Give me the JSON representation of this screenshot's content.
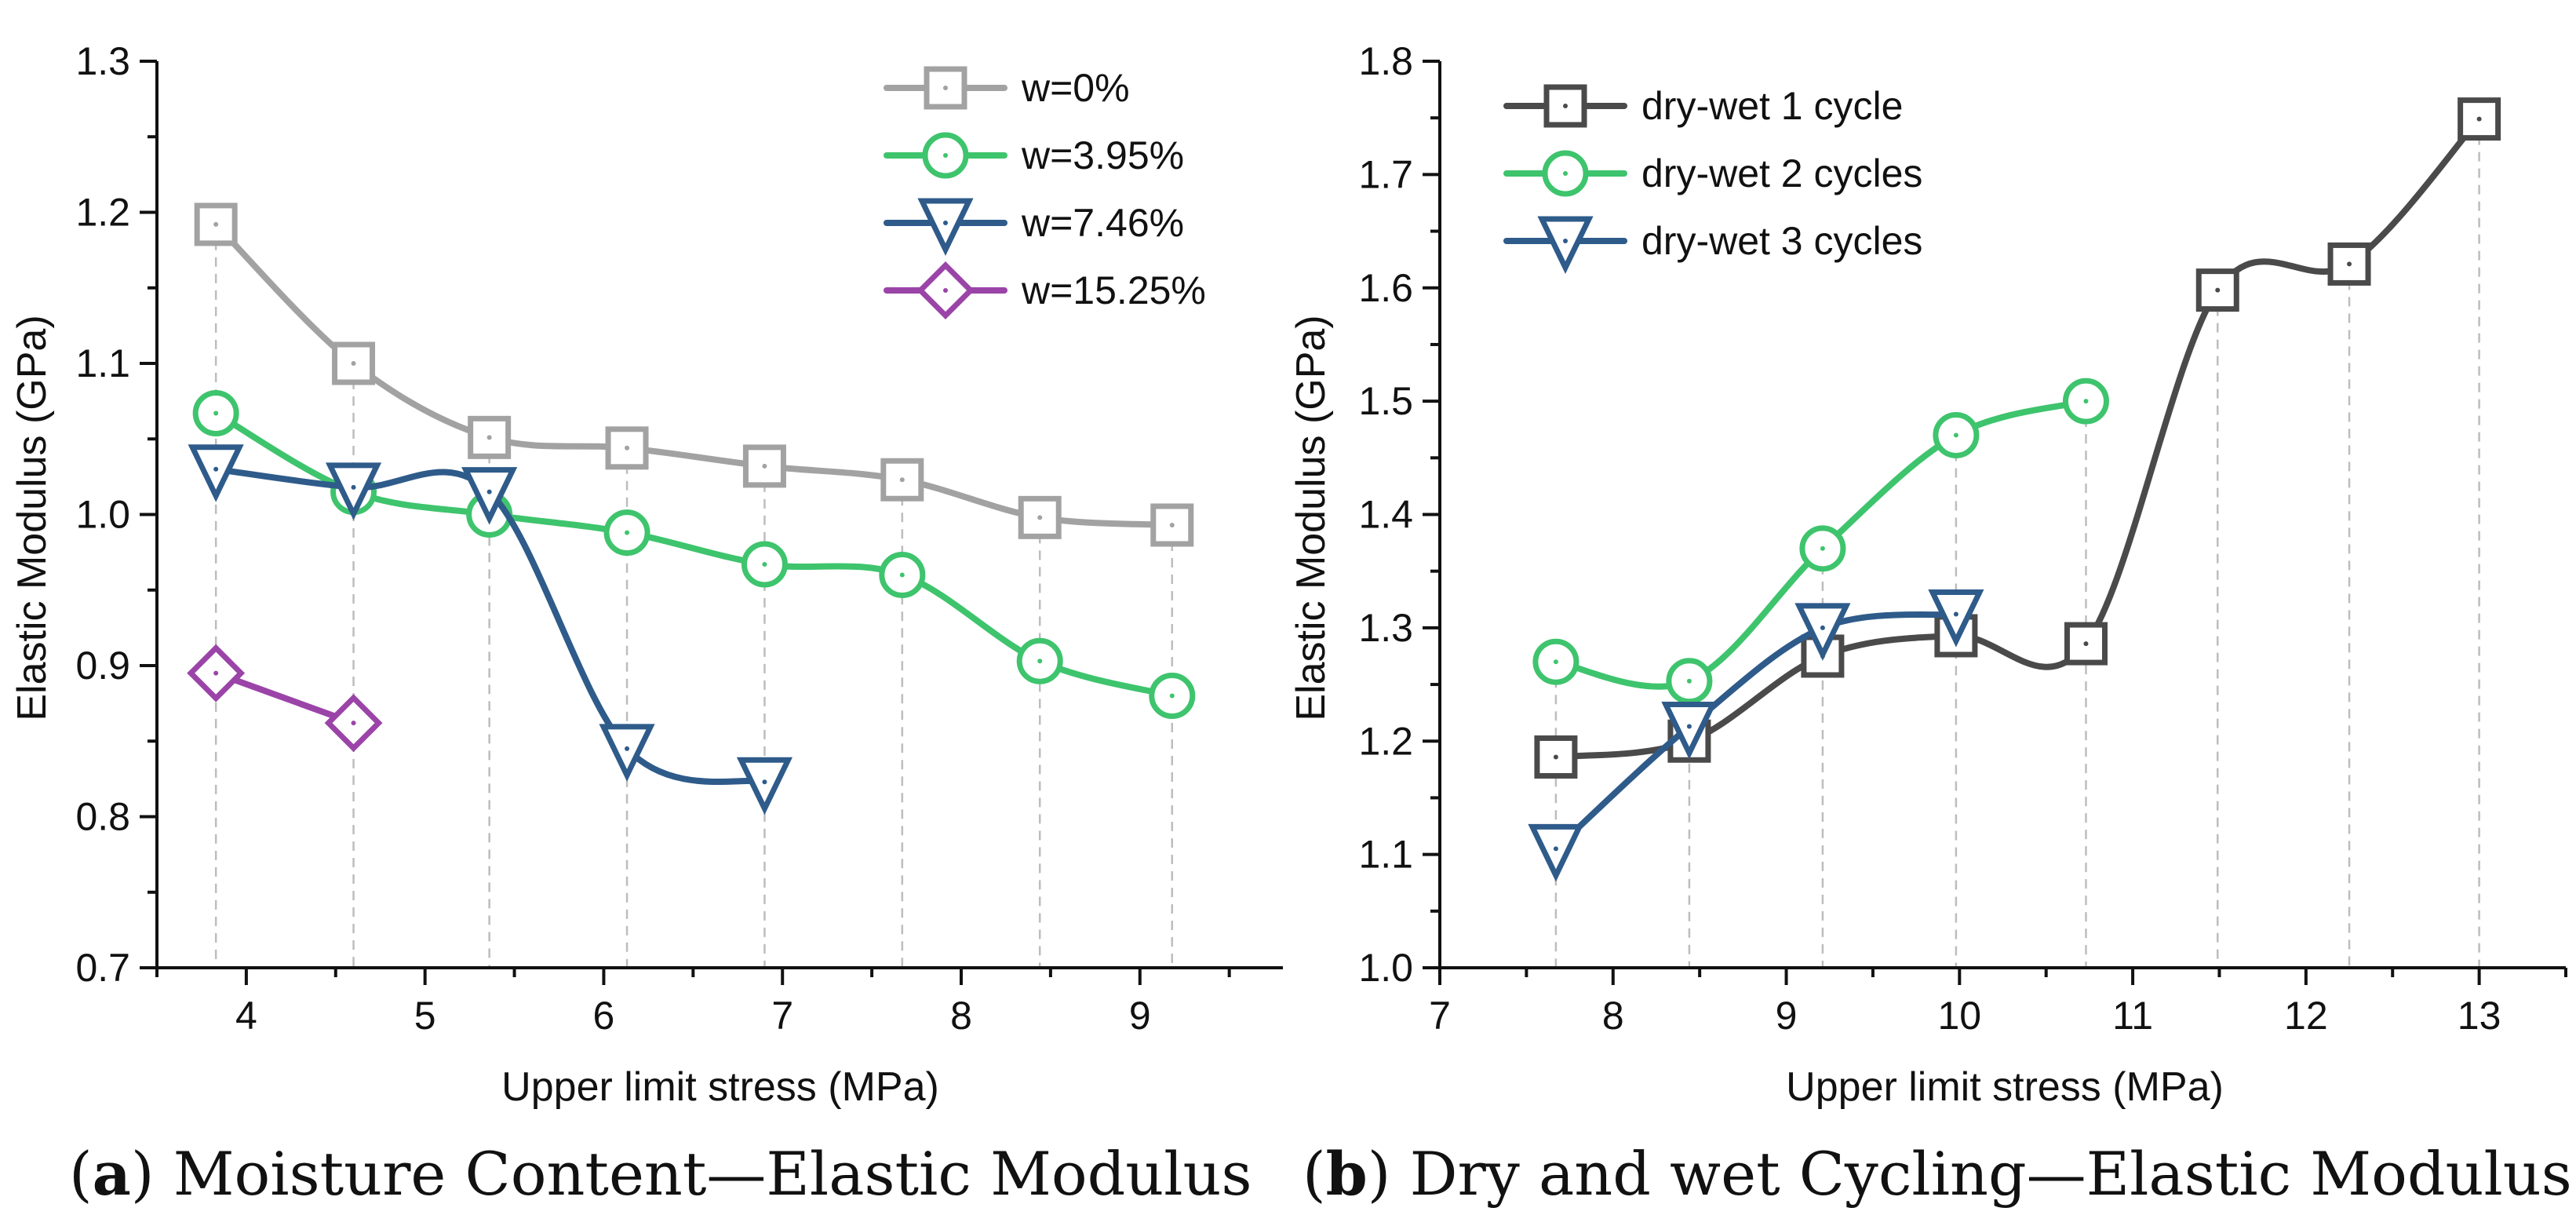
{
  "chart_data": [
    {
      "type": "line",
      "panel_label": "a",
      "caption": "Moisture Content—Elastic Modulus",
      "xlabel": "Upper limit stress (MPa)",
      "ylabel": "Elastic Modulus (GPa)",
      "xlim": [
        3.5,
        9.8
      ],
      "ylim": [
        0.7,
        1.3
      ],
      "xticks": [
        4,
        5,
        6,
        7,
        8,
        9
      ],
      "yticks": [
        0.7,
        0.8,
        0.9,
        1.0,
        1.1,
        1.2,
        1.3
      ],
      "xtick_labels": [
        "4",
        "5",
        "6",
        "7",
        "8",
        "9"
      ],
      "ytick_labels": [
        "0.7",
        "0.8",
        "0.9",
        "1.0",
        "1.1",
        "1.2",
        "1.3"
      ],
      "guide_x": [
        3.83,
        4.6,
        5.36,
        6.13,
        6.9,
        7.67,
        8.44,
        9.18
      ],
      "legend_position": "top-right",
      "series": [
        {
          "name": "w=0%",
          "color": "#a2a2a2",
          "marker": "square",
          "x": [
            3.83,
            4.6,
            5.36,
            6.13,
            6.9,
            7.67,
            8.44,
            9.18
          ],
          "y": [
            1.192,
            1.1,
            1.051,
            1.044,
            1.032,
            1.023,
            0.998,
            0.993
          ]
        },
        {
          "name": "w=3.95%",
          "color": "#3ec46d",
          "marker": "circle",
          "x": [
            3.83,
            4.6,
            5.36,
            6.13,
            6.9,
            7.67,
            8.44,
            9.18
          ],
          "y": [
            1.067,
            1.015,
            1.0,
            0.988,
            0.967,
            0.96,
            0.903,
            0.88
          ]
        },
        {
          "name": "w=7.46%",
          "color": "#2e5b8a",
          "marker": "triangle-down",
          "x": [
            3.83,
            4.6,
            5.36,
            6.13,
            6.9
          ],
          "y": [
            1.03,
            1.018,
            1.015,
            0.845,
            0.823
          ]
        },
        {
          "name": "w=15.25%",
          "color": "#9b44a8",
          "marker": "diamond",
          "x": [
            3.83,
            4.6
          ],
          "y": [
            0.895,
            0.862
          ]
        }
      ]
    },
    {
      "type": "line",
      "panel_label": "b",
      "caption": "Dry and wet Cycling—Elastic Modulus",
      "xlabel": "Upper limit stress (MPa)",
      "ylabel": "Elastic Modulus (GPa)",
      "xlim": [
        7,
        13.5
      ],
      "ylim": [
        1.0,
        1.8
      ],
      "xticks": [
        7,
        8,
        9,
        10,
        11,
        12,
        13
      ],
      "yticks": [
        1.0,
        1.1,
        1.2,
        1.3,
        1.4,
        1.5,
        1.6,
        1.7,
        1.8
      ],
      "xtick_labels": [
        "7",
        "8",
        "9",
        "10",
        "11",
        "12",
        "13"
      ],
      "ytick_labels": [
        "1.0",
        "1.1",
        "1.2",
        "1.3",
        "1.4",
        "1.5",
        "1.6",
        "1.7",
        "1.8"
      ],
      "guide_x": [
        7.67,
        8.44,
        9.21,
        9.98,
        10.73,
        11.49,
        12.25,
        13.0
      ],
      "legend_position": "top-left",
      "series": [
        {
          "name": "dry-wet 1 cycle",
          "color": "#4a4a4a",
          "marker": "square",
          "x": [
            7.67,
            8.44,
            9.21,
            9.98,
            10.73,
            11.49,
            12.25,
            13.0
          ],
          "y": [
            1.186,
            1.2,
            1.275,
            1.293,
            1.286,
            1.598,
            1.621,
            1.749
          ]
        },
        {
          "name": "dry-wet 2 cycles",
          "color": "#3ec46d",
          "marker": "circle",
          "x": [
            7.67,
            8.44,
            9.21,
            9.98,
            10.73
          ],
          "y": [
            1.27,
            1.253,
            1.37,
            1.47,
            1.5
          ]
        },
        {
          "name": "dry-wet 3 cycles",
          "color": "#2e5b8a",
          "marker": "triangle-down",
          "x": [
            7.67,
            8.44,
            9.21,
            9.98
          ],
          "y": [
            1.105,
            1.213,
            1.3,
            1.312
          ]
        }
      ]
    }
  ]
}
